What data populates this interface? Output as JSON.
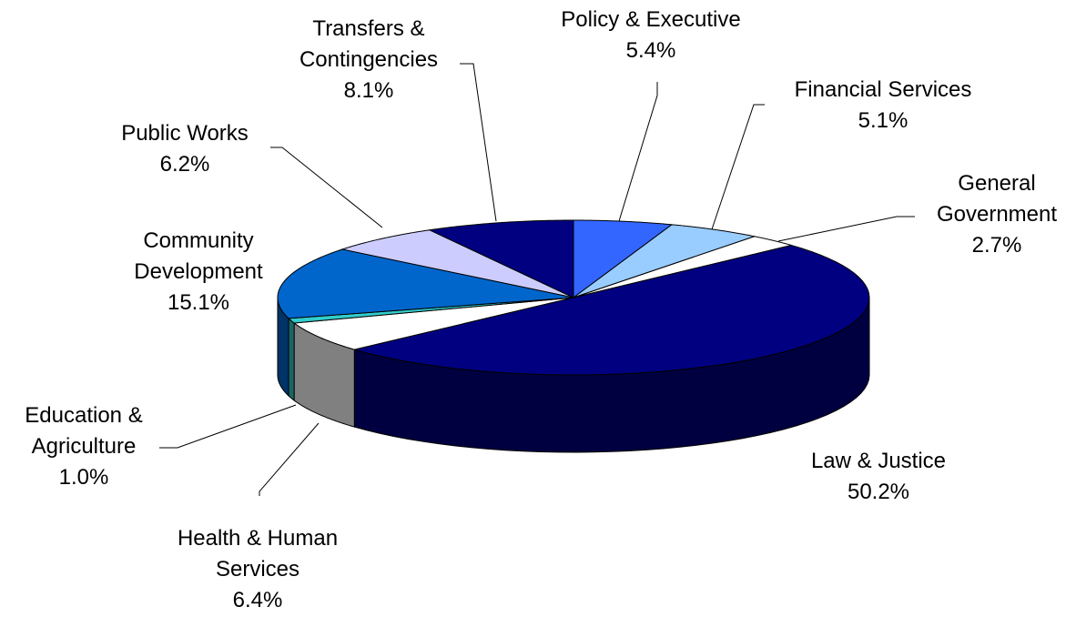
{
  "chart_data": {
    "type": "pie3d",
    "categories": [
      "Policy & Executive",
      "Financial Services",
      "General Government",
      "Law & Justice",
      "Health & Human Services",
      "Education & Agriculture",
      "Community Development",
      "Public Works",
      "Transfers & Contingencies"
    ],
    "values": [
      5.4,
      5.1,
      2.7,
      50.2,
      6.4,
      1.0,
      15.1,
      6.2,
      8.1
    ],
    "value_labels": [
      "5.4%",
      "5.1%",
      "2.7%",
      "50.2%",
      "6.4%",
      "1.0%",
      "15.1%",
      "6.2%",
      "8.1%"
    ],
    "colors": [
      "#3366ff",
      "#99ccff",
      "#ffffff",
      "#000080",
      "#ffffff",
      "#33cccc",
      "#0066cc",
      "#ccccff",
      "#000080"
    ]
  }
}
